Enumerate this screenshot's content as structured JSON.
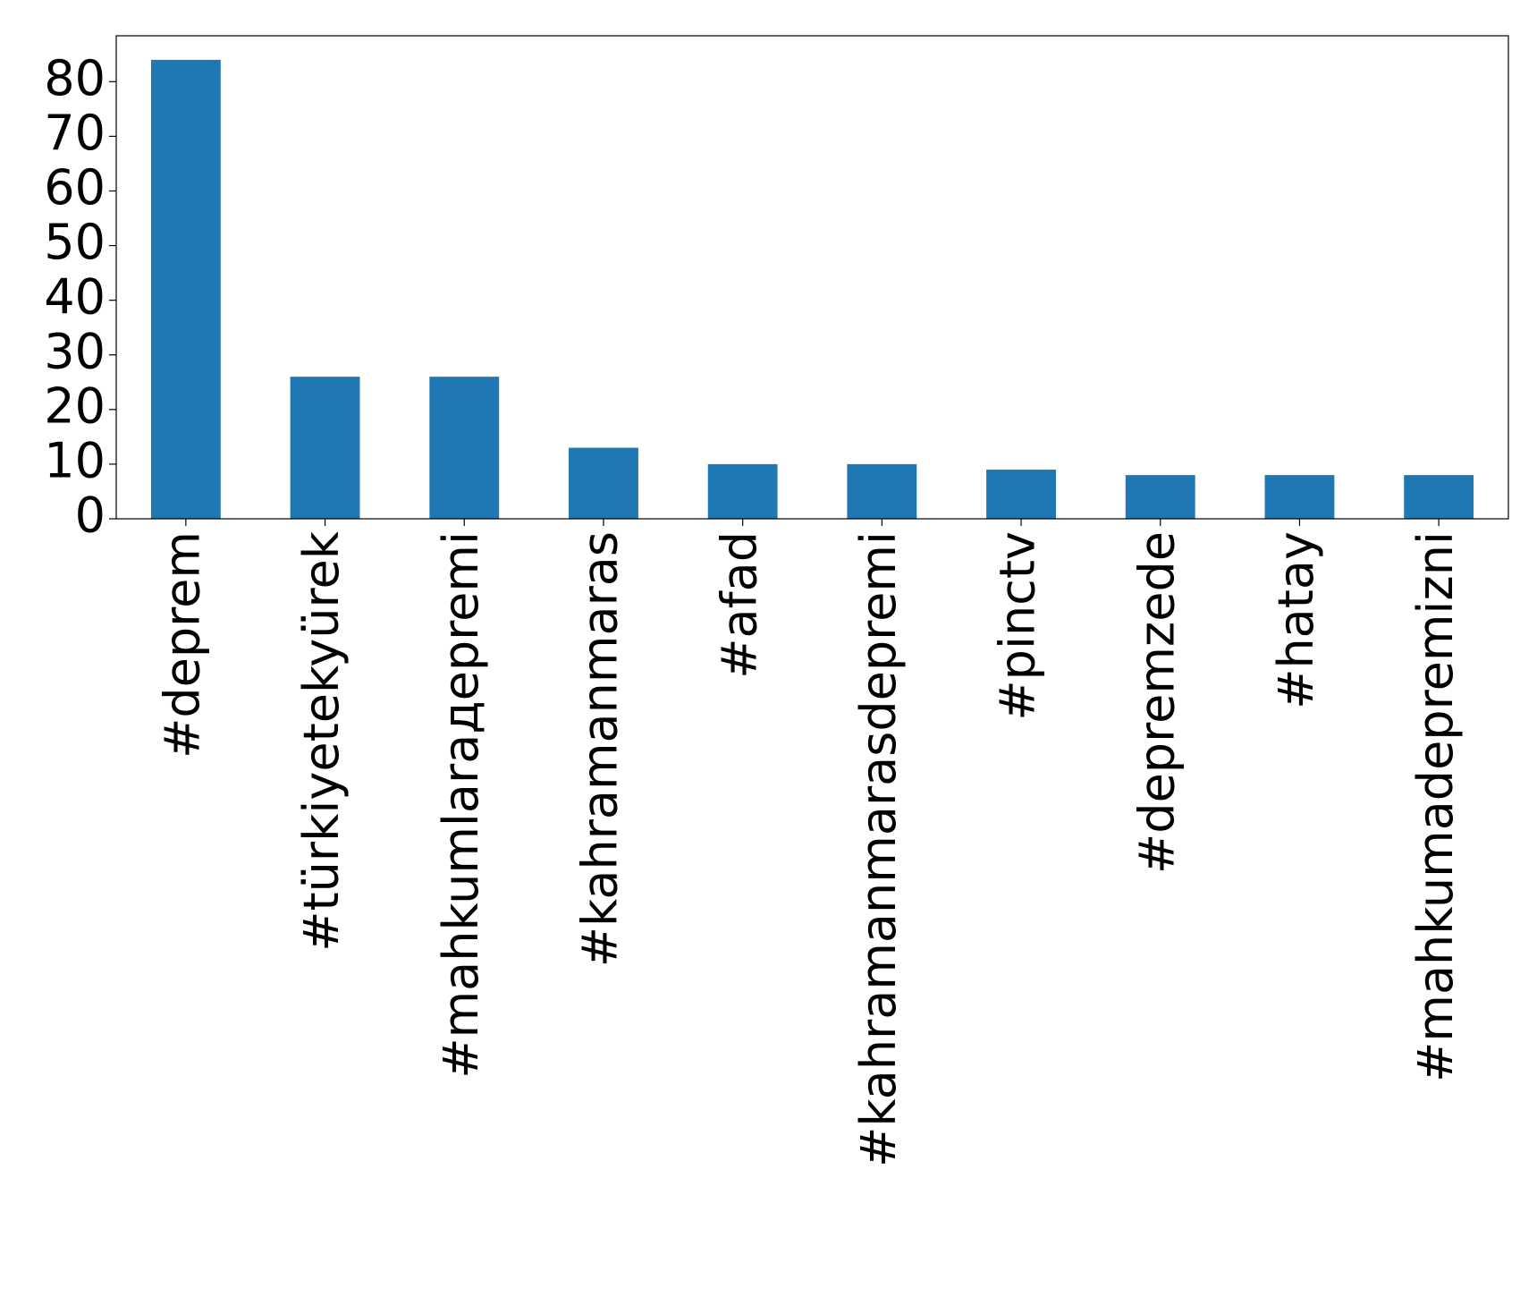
{
  "chart_data": {
    "type": "bar",
    "categories": [
      "#deprem",
      "#türkiyetekyürek",
      "#mahkumlarадepremi",
      "#kahramanmaras",
      "#afad",
      "#kahramanmarasdepremi",
      "#pinctv",
      "#depremzede",
      "#hatay",
      "#mahkumadepremizni"
    ],
    "values": [
      84,
      26,
      26,
      13,
      10,
      10,
      9,
      8,
      8,
      8
    ],
    "color": "#1f77b4",
    "ylim": [
      0,
      88.4
    ],
    "yticks": [
      0,
      10,
      20,
      30,
      40,
      50,
      60,
      70,
      80
    ],
    "grid": false
  }
}
